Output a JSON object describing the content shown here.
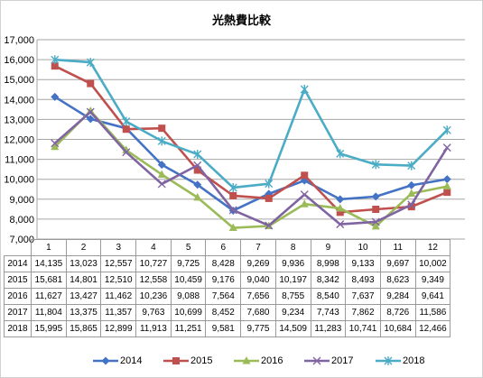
{
  "chart_data": {
    "type": "line",
    "title": "光熱費比較",
    "categories": [
      "1",
      "2",
      "3",
      "4",
      "5",
      "6",
      "7",
      "8",
      "9",
      "10",
      "11",
      "12"
    ],
    "ylim": [
      7000,
      17000
    ],
    "y_ticks": [
      "7,000",
      "8,000",
      "9,000",
      "10,000",
      "11,000",
      "12,000",
      "13,000",
      "14,000",
      "15,000",
      "16,000",
      "17,000"
    ],
    "grid": "horizontal",
    "legend_position": "bottom",
    "series": [
      {
        "name": "2014",
        "color": "#4472c4",
        "marker": "diamond",
        "values": [
          14135,
          13023,
          12557,
          10727,
          9725,
          8428,
          9269,
          9936,
          8998,
          9133,
          9697,
          10002
        ],
        "labels": [
          "14,135",
          "13,023",
          "12,557",
          "10,727",
          "9,725",
          "8,428",
          "9,269",
          "9,936",
          "8,998",
          "9,133",
          "9,697",
          "10,002"
        ]
      },
      {
        "name": "2015",
        "color": "#c0504d",
        "marker": "square",
        "values": [
          15681,
          14801,
          12510,
          12558,
          10459,
          9176,
          9040,
          10197,
          8342,
          8493,
          8623,
          9349
        ],
        "labels": [
          "15,681",
          "14,801",
          "12,510",
          "12,558",
          "10,459",
          "9,176",
          "9,040",
          "10,197",
          "8,342",
          "8,493",
          "8,623",
          "9,349"
        ]
      },
      {
        "name": "2016",
        "color": "#9bbb59",
        "marker": "triangle",
        "values": [
          11627,
          13427,
          11462,
          10236,
          9088,
          7564,
          7656,
          8755,
          8540,
          7637,
          9284,
          9641
        ],
        "labels": [
          "11,627",
          "13,427",
          "11,462",
          "10,236",
          "9,088",
          "7,564",
          "7,656",
          "8,755",
          "8,540",
          "7,637",
          "9,284",
          "9,641"
        ]
      },
      {
        "name": "2017",
        "color": "#8064a2",
        "marker": "x",
        "values": [
          11804,
          13375,
          11357,
          9763,
          10699,
          8452,
          7680,
          9234,
          7743,
          7862,
          8726,
          11586
        ],
        "labels": [
          "11,804",
          "13,375",
          "11,357",
          "9,763",
          "10,699",
          "8,452",
          "7,680",
          "9,234",
          "7,743",
          "7,862",
          "8,726",
          "11,586"
        ]
      },
      {
        "name": "2018",
        "color": "#4bacc6",
        "marker": "star",
        "values": [
          15995,
          15865,
          12899,
          11913,
          11251,
          9581,
          9775,
          14509,
          11283,
          10741,
          10684,
          12466
        ],
        "labels": [
          "15,995",
          "15,865",
          "12,899",
          "11,913",
          "11,251",
          "9,581",
          "9,775",
          "14,509",
          "11,283",
          "10,741",
          "10,684",
          "12,466"
        ]
      }
    ]
  }
}
